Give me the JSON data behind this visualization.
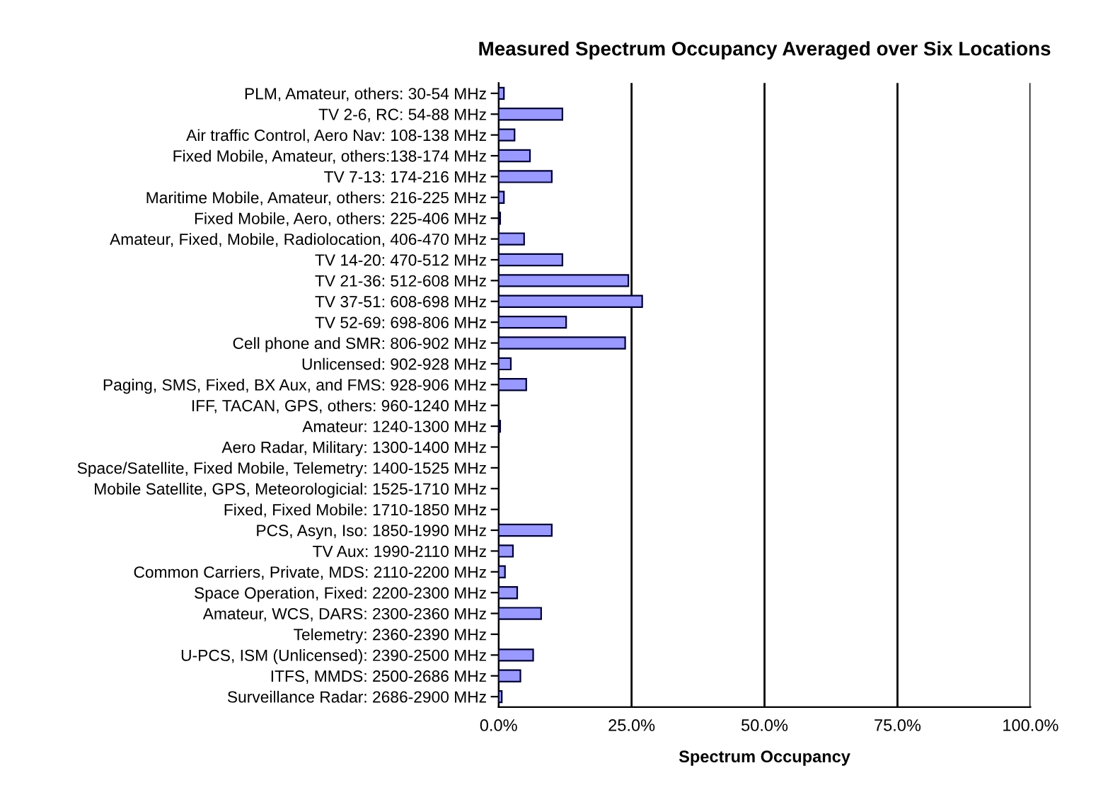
{
  "chart_data": {
    "type": "bar",
    "orientation": "horizontal",
    "title": "Measured Spectrum Occupancy Averaged over Six Locations",
    "xlabel": "Spectrum Occupancy",
    "categories": [
      "PLM, Amateur, others: 30-54 MHz",
      "TV 2-6, RC: 54-88 MHz",
      "Air traffic Control, Aero Nav: 108-138 MHz",
      "Fixed Mobile, Amateur, others:138-174 MHz",
      "TV 7-13: 174-216 MHz",
      "Maritime Mobile, Amateur, others: 216-225 MHz",
      "Fixed Mobile, Aero, others: 225-406 MHz",
      "Amateur, Fixed, Mobile, Radiolocation, 406-470 MHz",
      "TV 14-20: 470-512 MHz",
      "TV 21-36: 512-608 MHz",
      "TV 37-51: 608-698 MHz",
      "TV 52-69: 698-806 MHz",
      "Cell phone and SMR: 806-902 MHz",
      "Unlicensed: 902-928 MHz",
      "Paging, SMS, Fixed, BX Aux, and FMS: 928-906 MHz",
      "IFF, TACAN, GPS, others: 960-1240 MHz",
      "Amateur: 1240-1300 MHz",
      "Aero Radar, Military: 1300-1400 MHz",
      "Space/Satellite, Fixed Mobile, Telemetry: 1400-1525 MHz",
      "Mobile Satellite, GPS, Meteorologicial: 1525-1710 MHz",
      "Fixed, Fixed Mobile: 1710-1850 MHz",
      "PCS, Asyn, Iso: 1850-1990 MHz",
      "TV Aux: 1990-2110 MHz",
      "Common Carriers, Private, MDS: 2110-2200 MHz",
      "Space Operation, Fixed: 2200-2300 MHz",
      "Amateur, WCS, DARS: 2300-2360 MHz",
      "Telemetry: 2360-2390 MHz",
      "U-PCS, ISM (Unlicensed): 2390-2500 MHz",
      "ITFS, MMDS: 2500-2686 MHz",
      "Surveillance Radar: 2686-2900 MHz"
    ],
    "values": [
      1.0,
      12.0,
      3.0,
      5.9,
      10.0,
      1.0,
      0.3,
      4.8,
      12.0,
      24.4,
      27.0,
      12.7,
      23.8,
      2.3,
      5.2,
      0,
      0.3,
      0,
      0,
      0,
      0,
      10.0,
      2.7,
      1.2,
      3.5,
      8.0,
      0,
      6.5,
      4.1,
      0.6
    ],
    "color": "#9999ff",
    "xlim": [
      0,
      100
    ],
    "xticks": [
      {
        "value": 0,
        "label": "0.0%"
      },
      {
        "value": 25,
        "label": "25.0%"
      },
      {
        "value": 50,
        "label": "50.0%"
      },
      {
        "value": 75,
        "label": "75.0%"
      },
      {
        "value": 100,
        "label": "100.0%"
      }
    ],
    "grid": "x"
  }
}
